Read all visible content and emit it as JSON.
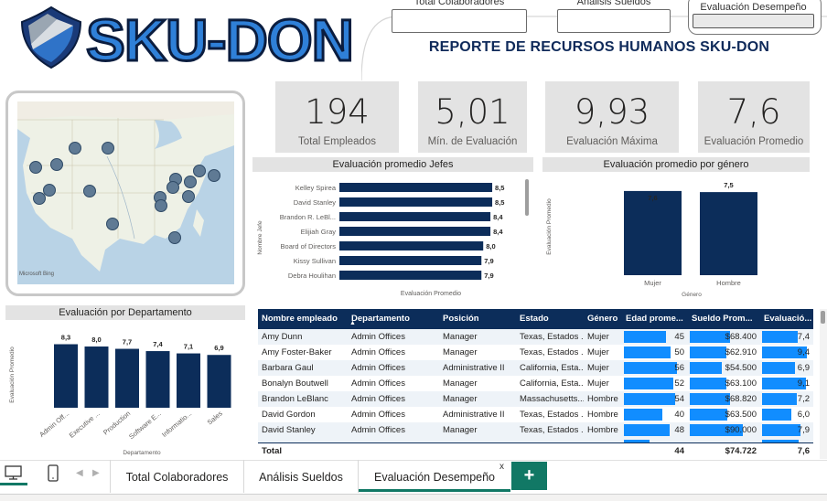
{
  "nav": {
    "btn1": "Total Colaboradores",
    "btn2": "Análisis Sueldos",
    "btn3": "Evaluación Desempeño"
  },
  "report_title": "REPORTE DE RECURSOS HUMANOS SKU-DON",
  "logo_text": "SKU-DON",
  "map": {
    "credit": "Microsoft Bing",
    "points": 17
  },
  "kpis": [
    {
      "value": "194",
      "label": "Total Empleados"
    },
    {
      "value": "5,01",
      "label": "Mín. de Evaluación"
    },
    {
      "value": "9,93",
      "label": "Evaluación Máxima"
    },
    {
      "value": "7,6",
      "label": "Evaluación Promedio"
    }
  ],
  "chart_data": [
    {
      "type": "bar",
      "orientation": "horizontal",
      "title": "Evaluación promedio Jefes",
      "xlabel": "Evaluación Promedio",
      "ylabel": "Nombre Jefe",
      "categories": [
        "Kelley Spirea",
        "David Stanley",
        "Brandon R. LeBl...",
        "Elijiah Gray",
        "Board of Directors",
        "Kissy Sullivan",
        "Debra Houlihan"
      ],
      "values": [
        8.5,
        8.5,
        8.4,
        8.4,
        8.0,
        7.9,
        7.9
      ],
      "labels": [
        "8,5",
        "8,5",
        "8,4",
        "8,4",
        "8,0",
        "7,9",
        "7,9"
      ],
      "xlim": [
        0,
        8.6
      ],
      "color": "#0c2d5a"
    },
    {
      "type": "bar",
      "title": "Evaluación promedio por género",
      "xlabel": "Género",
      "ylabel": "Evaluación Promedio",
      "categories": [
        "Mujer",
        "Hombre"
      ],
      "values": [
        7.6,
        7.5
      ],
      "labels": [
        "7,6",
        "7,5"
      ],
      "ylim": [
        0,
        8.5
      ],
      "color": "#0c2d5a"
    },
    {
      "type": "bar",
      "title": "Evaluación por Departamento",
      "xlabel": "Departamento",
      "ylabel": "Evaluación Promedio",
      "categories": [
        "Admin Off...",
        "Executive ...",
        "Production",
        "Software E...",
        "Informatio...",
        "Sales"
      ],
      "values": [
        8.3,
        8.0,
        7.7,
        7.4,
        7.1,
        6.9
      ],
      "labels": [
        "8,3",
        "8,0",
        "7,7",
        "7,4",
        "7,1",
        "6,9"
      ],
      "ylim": [
        0,
        8.6
      ],
      "color": "#0c2d5a"
    },
    {
      "type": "table",
      "columns": [
        "Nombre empleado",
        "Departamento",
        "Posición",
        "Estado",
        "Género",
        "Edad prome...",
        "Sueldo Prom...",
        "Evaluació..."
      ],
      "rows": [
        [
          "Amy Dunn",
          "Admin Offices",
          "Manager",
          "Texas, Estados ...",
          "Mujer",
          "45",
          "$68.400",
          "7,4"
        ],
        [
          "Amy Foster-Baker",
          "Admin Offices",
          "Manager",
          "Texas, Estados ...",
          "Mujer",
          "50",
          "$62.910",
          "9,4"
        ],
        [
          "Barbara Gaul",
          "Admin Offices",
          "Administrative II",
          "California, Esta...",
          "Mujer",
          "56",
          "$54.500",
          "6,9"
        ],
        [
          "Bonalyn Boutwell",
          "Admin Offices",
          "Manager",
          "California, Esta...",
          "Mujer",
          "52",
          "$63.100",
          "9,1"
        ],
        [
          "Brandon LeBlanc",
          "Admin Offices",
          "Manager",
          "Massachusetts...",
          "Hombre",
          "54",
          "$68.820",
          "7,2"
        ],
        [
          "David Gordon",
          "Admin Offices",
          "Administrative II",
          "Texas, Estados ...",
          "Hombre",
          "40",
          "$63.500",
          "6,0"
        ],
        [
          "David Stanley",
          "Admin Offices",
          "Manager",
          "Texas, Estados ...",
          "Hombre",
          "48",
          "$90.000",
          "7,9"
        ]
      ],
      "bar_fractions": {
        "edad": [
          0.7,
          0.78,
          0.88,
          0.82,
          0.85,
          0.63,
          0.75
        ],
        "sueldo": [
          0.6,
          0.55,
          0.48,
          0.55,
          0.6,
          0.56,
          0.79
        ],
        "evaluacion": [
          0.75,
          0.95,
          0.7,
          0.92,
          0.73,
          0.61,
          0.8
        ]
      },
      "total": {
        "label": "Total",
        "edad": "44",
        "sueldo": "$74.722",
        "evaluacion": "7,6"
      }
    }
  ],
  "tabs": {
    "t1": "Total Colaboradores",
    "t2": "Análisis Sueldos",
    "t3": "Evaluación Desempeño",
    "add": "+",
    "close": "x"
  },
  "colors": {
    "navy": "#0c2d5a",
    "bar_blue": "#118dff",
    "panel_gray": "#e3e3e3",
    "tab_green": "#117865"
  }
}
